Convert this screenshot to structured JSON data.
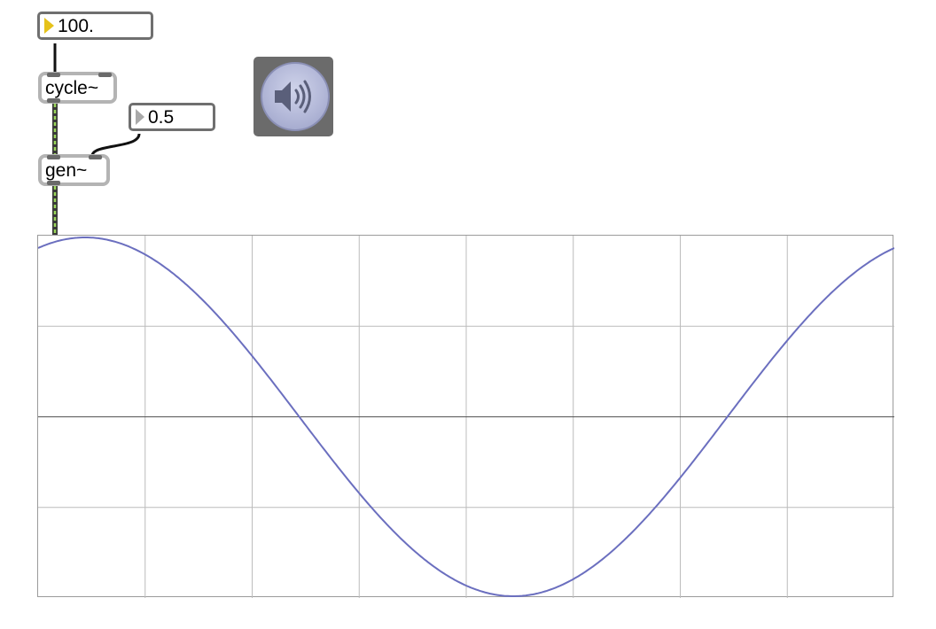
{
  "patch": {
    "freq_number": "100.",
    "cycle_label": "cycle~",
    "param_number": "0.5",
    "gen_label": "gen~",
    "dac_icon": "speaker-icon"
  },
  "colors": {
    "number_triangle_active": "#e6c21a",
    "number_triangle_idle": "#a9a9a9",
    "object_border": "#b4b4b4",
    "signal_wire": "#9ad65a",
    "scope_trace": "#6b6fbf",
    "scope_grid": "#bcbcbc",
    "scope_axis": "#555555"
  },
  "scope": {
    "grid_cols": 8,
    "grid_rows": 4,
    "phase_offset": 0.5
  }
}
